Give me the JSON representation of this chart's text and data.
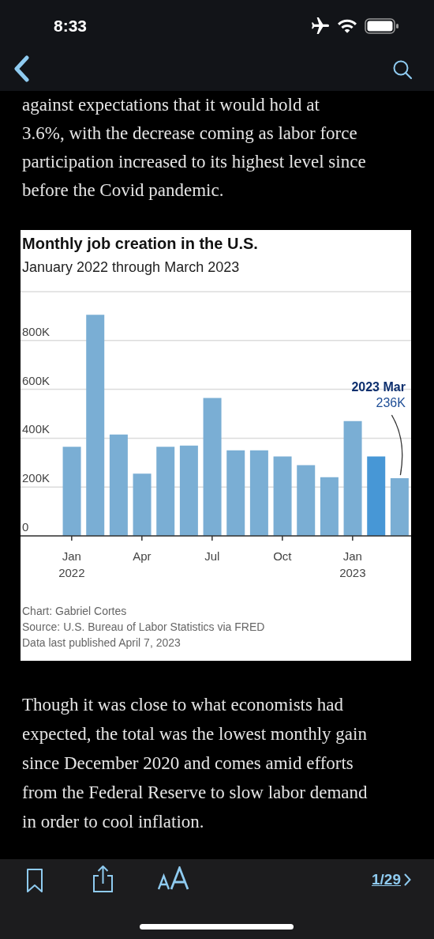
{
  "chart_data": {
    "type": "bar",
    "title": "Monthly job creation in the U.S.",
    "subtitle": "January 2022 through March 2023",
    "categories": [
      "Jan\n2022",
      null,
      null,
      "Apr",
      null,
      null,
      "Jul",
      null,
      null,
      "Oct",
      null,
      null,
      "Jan\n2023",
      null,
      null
    ],
    "values": [
      365,
      905,
      415,
      255,
      365,
      370,
      565,
      350,
      350,
      325,
      290,
      240,
      470,
      325,
      236
    ],
    "colors": [
      "#7aaed4",
      "#7aaed4",
      "#7aaed4",
      "#7aaed4",
      "#7aaed4",
      "#7aaed4",
      "#7aaed4",
      "#7aaed4",
      "#7aaed4",
      "#7aaed4",
      "#7aaed4",
      "#7aaed4",
      "#7aaed4",
      "#4797d6",
      "#7aaed4"
    ],
    "value_labels": [
      null,
      null,
      null,
      null,
      null,
      null,
      null,
      null,
      null,
      null,
      null,
      null,
      null,
      null,
      "236K"
    ],
    "ylim": [
      0,
      1000
    ],
    "yticks": [
      0,
      {
        "value": 200,
        "label": "200K"
      },
      {
        "value": 400,
        "label": "400K"
      },
      {
        "value": 600,
        "label": "600K"
      },
      {
        "value": 800,
        "label": "800K"
      }
    ],
    "grid": "y",
    "annotations": [
      "8:33",
      "against expectations that it would hold at\n3.6%, with the decrease coming as labor force\nparticipation increased to its highest level since\nbefore the Covid pandemic.",
      "2023 Mar",
      "Chart: Gabriel Cortes",
      "Source: U.S. Bureau of Labor Statistics via FRED",
      "Data last published April 7, 2023",
      "Though it was close to what economists had\nexpected, the total was the lowest monthly gain\nsince December 2020 and comes amid efforts\nfrom the Federal Reserve to slow labor demand\nin order to cool inflation.",
      "1/29"
    ]
  }
}
